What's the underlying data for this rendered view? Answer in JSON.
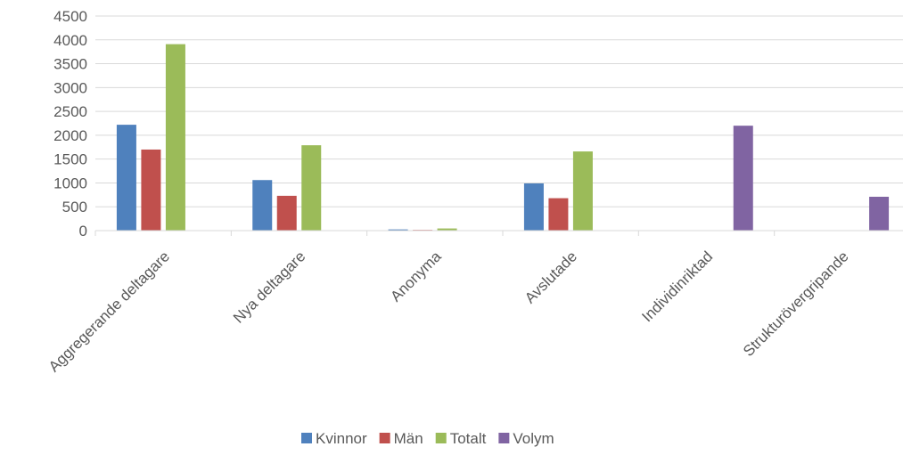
{
  "chart_data": {
    "type": "bar",
    "title": "",
    "xlabel": "",
    "ylabel": "",
    "ylim": [
      0,
      4500
    ],
    "yticks": [
      0,
      500,
      1000,
      1500,
      2000,
      2500,
      3000,
      3500,
      4000,
      4500
    ],
    "grid": true,
    "legend_position": "bottom",
    "categories": [
      "Aggregerande deltagare",
      "Nya deltagare",
      "Anonyma",
      "Avslutade",
      "Individinriktad",
      "Strukturövergripande"
    ],
    "series": [
      {
        "name": "Kvinnor",
        "color": "#4f81bd",
        "values": [
          2220,
          1060,
          25,
          990,
          0,
          0
        ]
      },
      {
        "name": "Män",
        "color": "#c0504d",
        "values": [
          1700,
          730,
          15,
          680,
          0,
          0
        ]
      },
      {
        "name": "Totalt",
        "color": "#9bbb59",
        "values": [
          3910,
          1790,
          45,
          1660,
          0,
          0
        ]
      },
      {
        "name": "Volym",
        "color": "#8064a2",
        "values": [
          0,
          0,
          0,
          0,
          2200,
          710
        ]
      }
    ]
  }
}
